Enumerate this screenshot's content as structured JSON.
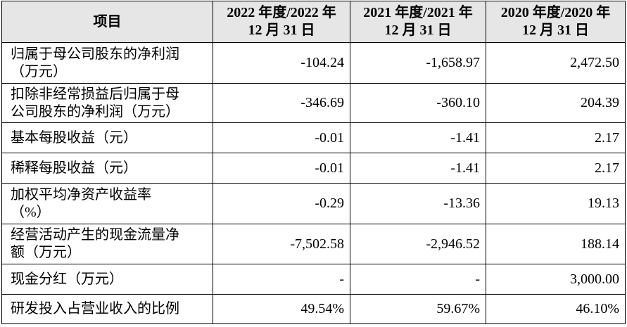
{
  "header": [
    "项目",
    [
      "2022 年度/2022 年",
      "12 月 31 日"
    ],
    [
      "2021 年度/2021 年",
      "12 月 31 日"
    ],
    [
      "2020 年度/2020 年",
      "12 月 31 日"
    ]
  ],
  "rows": [
    [
      [
        "归属于母公司股东的净利润",
        "（万元）"
      ],
      "-104.24",
      "-1,658.97",
      "2,472.50"
    ],
    [
      [
        "扣除非经常损益后归属于母",
        "公司股东的净利润（万元）"
      ],
      "-346.69",
      "-360.10",
      "204.39"
    ],
    [
      [
        "基本每股收益（元）"
      ],
      "-0.01",
      "-1.41",
      "2.17"
    ],
    [
      [
        "稀释每股收益（元）"
      ],
      "-0.01",
      "-1.41",
      "2.17"
    ],
    [
      [
        "加权平均净资产收益率",
        "（%）"
      ],
      "-0.29",
      "-13.36",
      "19.13"
    ],
    [
      [
        "经营活动产生的现金流量净",
        "额（万元）"
      ],
      "-7,502.58",
      "-2,946.52",
      "188.14"
    ],
    [
      [
        "现金分红（万元）"
      ],
      "-",
      "-",
      "3,000.00"
    ],
    [
      [
        "研发投入占营业收入的比例"
      ],
      "49.54%",
      "59.67%",
      "46.10%"
    ]
  ]
}
